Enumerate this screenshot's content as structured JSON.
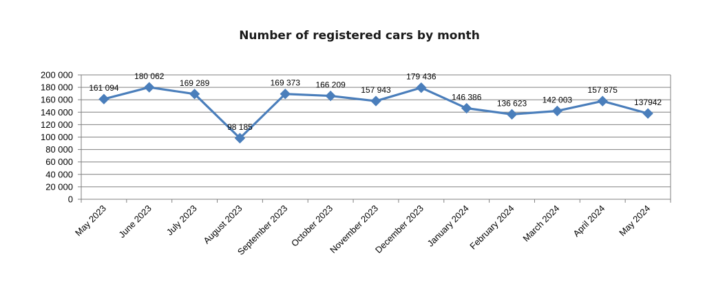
{
  "chart_data": {
    "type": "line",
    "title": "Number of registered cars by month",
    "xlabel": "",
    "ylabel": "",
    "categories": [
      "May 2023",
      "June 2023",
      "July 2023",
      "August 2023",
      "September 2023",
      "October 2023",
      "November 2023",
      "December 2023",
      "January 2024",
      "February 2024",
      "March 2024",
      "April 2024",
      "May 2024"
    ],
    "values": [
      161094,
      180062,
      169289,
      98185,
      169373,
      166209,
      157943,
      179436,
      146386,
      136623,
      142003,
      157875,
      137942
    ],
    "data_labels": [
      "161 094",
      "180 062",
      "169 289",
      "98 185",
      "169 373",
      "166 209",
      "157 943",
      "179 436",
      "146 386",
      "136 623",
      "142 003",
      "157 875",
      "137942"
    ],
    "ylim": [
      0,
      200000
    ],
    "yticks": [
      0,
      20000,
      40000,
      60000,
      80000,
      100000,
      120000,
      140000,
      160000,
      180000,
      200000
    ],
    "ytick_labels": [
      "0",
      "20 000",
      "40 000",
      "60 000",
      "80 000",
      "100 000",
      "120 000",
      "140 000",
      "160 000",
      "180 000",
      "200 000"
    ],
    "grid": true,
    "legend": "none",
    "line_color": "#4A7EBB",
    "marker": "diamond"
  }
}
